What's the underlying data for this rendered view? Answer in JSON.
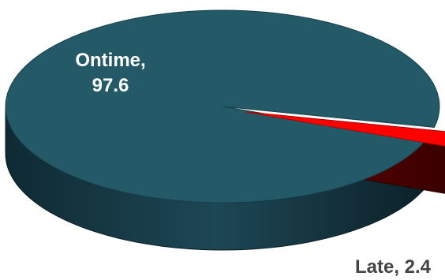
{
  "chart_data": {
    "type": "pie",
    "style": "3d-exploded",
    "slices": [
      {
        "name": "Ontime",
        "value": 97.6,
        "label": "Ontime,",
        "value_label": "97.6",
        "color": "#245a68",
        "side_color": "#1c4553"
      },
      {
        "name": "Late",
        "value": 2.4,
        "label": "Late, 2.4",
        "color": "#ff0000",
        "side_color": "#7a0000"
      }
    ],
    "title": "",
    "legend": "none",
    "label_colors": {
      "inside": "#ffffff",
      "outside": "#444444"
    }
  }
}
